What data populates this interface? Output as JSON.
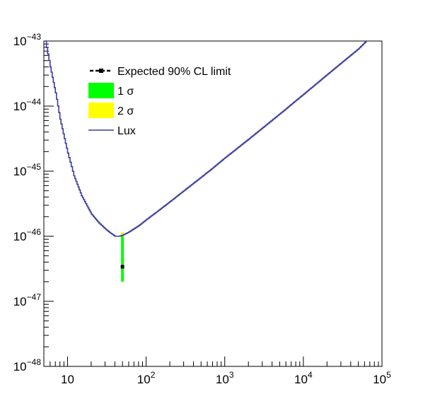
{
  "chart_data": {
    "type": "line",
    "title": "",
    "xlabel": "",
    "ylabel": "",
    "x_scale": "log",
    "y_scale": "log",
    "xlim": [
      5,
      100000
    ],
    "ylim": [
      1e-48,
      1e-43
    ],
    "grid": false,
    "legend_position": "top-left",
    "x_ticks": [
      {
        "value": 10,
        "base": "10",
        "exp": ""
      },
      {
        "value": 100,
        "base": "10",
        "exp": "2"
      },
      {
        "value": 1000,
        "base": "10",
        "exp": "3"
      },
      {
        "value": 10000,
        "base": "10",
        "exp": "4"
      },
      {
        "value": 100000,
        "base": "10",
        "exp": "5"
      }
    ],
    "y_ticks": [
      {
        "value": 1e-48,
        "base": "10",
        "exp": "−48"
      },
      {
        "value": 1e-47,
        "base": "10",
        "exp": "−47"
      },
      {
        "value": 1e-46,
        "base": "10",
        "exp": "−46"
      },
      {
        "value": 1e-45,
        "base": "10",
        "exp": "−45"
      },
      {
        "value": 1e-44,
        "base": "10",
        "exp": "−44"
      },
      {
        "value": 1e-43,
        "base": "10",
        "exp": "−43"
      }
    ],
    "legend": [
      {
        "key": "expected",
        "label": "Expected 90% CL limit",
        "style": "dashed-marker",
        "color": "#000000"
      },
      {
        "key": "one_sigma",
        "label": "1 σ",
        "style": "fill",
        "color": "#00ff00"
      },
      {
        "key": "two_sigma",
        "label": "2 σ",
        "style": "fill",
        "color": "#ffff00"
      },
      {
        "key": "lux",
        "label": "Lux",
        "style": "line",
        "color": "#3b3b9c"
      }
    ],
    "series": [
      {
        "name": "Lux",
        "color": "#3b3b9c",
        "x": [
          5.2,
          6,
          7,
          8,
          10,
          12,
          15,
          20,
          25,
          30,
          35,
          40,
          45,
          50,
          60,
          80,
          100,
          150,
          200,
          300,
          500,
          700,
          1000,
          2000,
          5000,
          10000,
          20000,
          50000,
          63000
        ],
        "y": [
          1e-43,
          4e-44,
          1.6e-44,
          6.3e-45,
          1.9e-45,
          8.5e-46,
          4.2e-46,
          2.2e-46,
          1.6e-46,
          1.3e-46,
          1.12e-46,
          1e-46,
          1e-46,
          1.04e-46,
          1.16e-46,
          1.45e-46,
          1.8e-46,
          2.6e-46,
          3.4e-46,
          5e-46,
          8.1e-46,
          1.12e-45,
          1.6e-45,
          3.1e-45,
          7.6e-45,
          1.52e-44,
          3.05e-44,
          7.6e-44,
          1e-43
        ]
      },
      {
        "name": "Expected 90% CL limit",
        "color": "#000000",
        "x": [
          50
        ],
        "y": [
          3.4e-47
        ]
      }
    ],
    "bands": [
      {
        "name": "1 σ",
        "color": "#00ff00",
        "x": 50,
        "low": 2e-47,
        "high": 1e-46
      },
      {
        "name": "2 σ",
        "color": "#ffff00",
        "x": 50,
        "low": 1e-46,
        "high": 1.15e-46
      }
    ]
  }
}
